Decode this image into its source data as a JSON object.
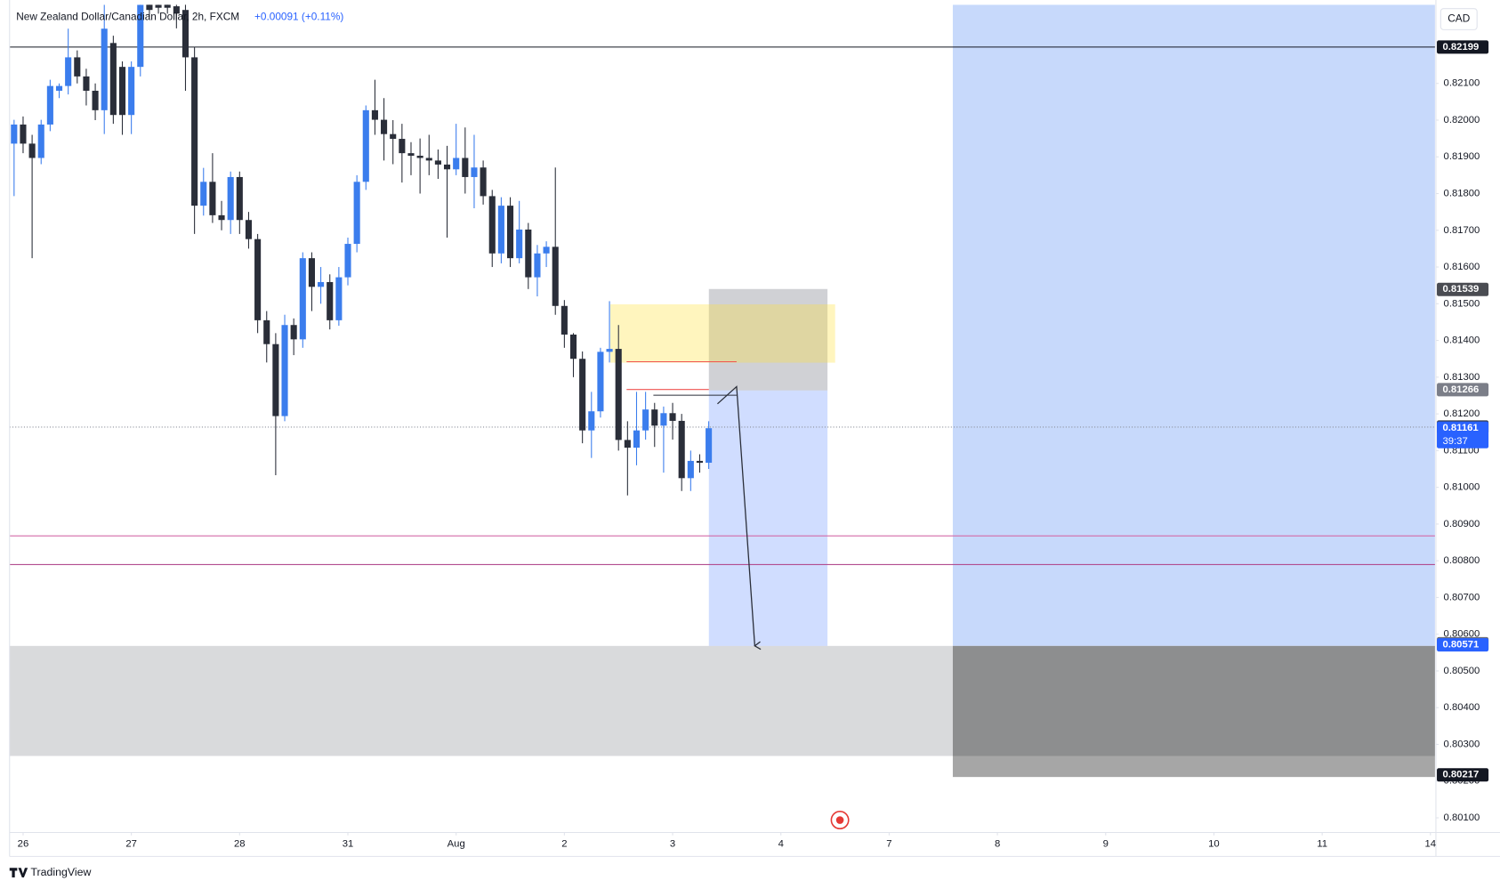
{
  "chart_data": {
    "type": "candlestick",
    "title": "New Zealand Dollar/Canadian Dollar, 2h, FXCM",
    "change": "+0.00091 (+0.11%)",
    "currency": "CAD",
    "watermark": "TradingView",
    "up_color": "#3b7ded",
    "down_color": "#2a2e39",
    "grid": false,
    "xlim": [
      0,
      158
    ],
    "xticks": [
      {
        "value": 1.5,
        "label": "26"
      },
      {
        "value": 13.5,
        "label": "27"
      },
      {
        "value": 25.5,
        "label": "28"
      },
      {
        "value": 37.5,
        "label": "31"
      },
      {
        "value": 49.5,
        "label": "Aug"
      },
      {
        "value": 61.5,
        "label": "2"
      },
      {
        "value": 73.5,
        "label": "3"
      },
      {
        "value": 85.5,
        "label": "4"
      },
      {
        "value": 97.5,
        "label": "7"
      },
      {
        "value": 109.5,
        "label": "8"
      },
      {
        "value": 121.5,
        "label": "9"
      },
      {
        "value": 133.5,
        "label": "10"
      },
      {
        "value": 145.5,
        "label": "11"
      },
      {
        "value": 157.5,
        "label": "14"
      }
    ],
    "ylim": [
      0.8006,
      0.82314
    ],
    "yticks": [
      {
        "value": 0.801,
        "label": "0.80100"
      },
      {
        "value": 0.802,
        "label": "0.80200"
      },
      {
        "value": 0.803,
        "label": "0.80300"
      },
      {
        "value": 0.804,
        "label": "0.80400"
      },
      {
        "value": 0.805,
        "label": "0.80500"
      },
      {
        "value": 0.806,
        "label": "0.80600"
      },
      {
        "value": 0.807,
        "label": "0.80700"
      },
      {
        "value": 0.808,
        "label": "0.80800"
      },
      {
        "value": 0.809,
        "label": "0.80900"
      },
      {
        "value": 0.81,
        "label": "0.81000"
      },
      {
        "value": 0.811,
        "label": "0.81100"
      },
      {
        "value": 0.812,
        "label": "0.81200"
      },
      {
        "value": 0.813,
        "label": "0.81300"
      },
      {
        "value": 0.814,
        "label": "0.81400"
      },
      {
        "value": 0.815,
        "label": "0.81500"
      },
      {
        "value": 0.816,
        "label": "0.81600"
      },
      {
        "value": 0.817,
        "label": "0.81700"
      },
      {
        "value": 0.818,
        "label": "0.81800"
      },
      {
        "value": 0.819,
        "label": "0.81900"
      },
      {
        "value": 0.82,
        "label": "0.82000"
      },
      {
        "value": 0.821,
        "label": "0.82100"
      }
    ],
    "open": [
      0.81936,
      0.81988,
      0.81936,
      0.81897,
      0.81988,
      0.8208,
      0.82093,
      0.82171,
      0.82119,
      0.8208,
      0.82027,
      0.8221,
      0.82145,
      0.82014,
      0.82145,
      0.8233,
      0.82314,
      0.8232,
      0.8231,
      0.823,
      0.82171,
      0.81767,
      0.81832,
      0.81741,
      0.81728,
      0.81845,
      0.81728,
      0.81676,
      0.81455,
      0.8139,
      0.81194,
      0.81442,
      0.81403,
      0.81624,
      0.81546,
      0.81559,
      0.81455,
      0.81572,
      0.81663,
      0.81832,
      0.82027,
      0.82001,
      0.81962,
      0.81949,
      0.8191,
      0.81903,
      0.81897,
      0.8189,
      0.81879,
      0.81866,
      0.81897,
      0.81845,
      0.81871,
      0.81793,
      0.81637,
      0.81767,
      0.81624,
      0.81702,
      0.81572,
      0.81637,
      0.81655,
      0.81494,
      0.81416,
      0.8135,
      0.81155,
      0.81207,
      0.81369,
      0.81377,
      0.81129,
      0.81108,
      0.81155,
      0.81212,
      0.81168,
      0.81202,
      0.81181,
      0.81025,
      0.81072,
      0.81067
    ],
    "high": [
      0.82001,
      0.8201,
      0.8196,
      0.82001,
      0.8211,
      0.821,
      0.82249,
      0.8219,
      0.8214,
      0.821,
      0.82314,
      0.8223,
      0.8216,
      0.8216,
      0.8232,
      0.8234,
      0.8233,
      0.8233,
      0.8233,
      0.8233,
      0.822,
      0.8187,
      0.8191,
      0.8178,
      0.8186,
      0.8186,
      0.8175,
      0.8169,
      0.8148,
      0.8142,
      0.8147,
      0.8146,
      0.8164,
      0.8164,
      0.816,
      0.8158,
      0.816,
      0.8168,
      0.8185,
      0.8204,
      0.8211,
      0.8206,
      0.82,
      0.8199,
      0.8194,
      0.8195,
      0.8196,
      0.8192,
      0.8193,
      0.8199,
      0.8198,
      0.8196,
      0.8189,
      0.8181,
      0.8179,
      0.8179,
      0.8178,
      0.8172,
      0.8166,
      0.8167,
      0.81871,
      0.8151,
      0.8142,
      0.8137,
      0.8126,
      0.8138,
      0.81507,
      0.81442,
      0.8118,
      0.8126,
      0.8126,
      0.8123,
      0.8122,
      0.8123,
      0.812,
      0.811,
      0.8109,
      0.8118
    ],
    "low": [
      0.81793,
      0.8191,
      0.81624,
      0.8188,
      0.8197,
      0.8206,
      0.8207,
      0.821,
      0.8204,
      0.82,
      0.81962,
      0.8199,
      0.8196,
      0.81962,
      0.82119,
      0.8228,
      0.8229,
      0.8229,
      0.8225,
      0.8208,
      0.8169,
      0.8174,
      0.8172,
      0.817,
      0.8169,
      0.8169,
      0.8165,
      0.8142,
      0.8134,
      0.81033,
      0.8118,
      0.8136,
      0.8138,
      0.8148,
      0.815,
      0.8143,
      0.8144,
      0.8155,
      0.8164,
      0.8181,
      0.8196,
      0.8189,
      0.8188,
      0.8183,
      0.8185,
      0.818,
      0.8185,
      0.8184,
      0.8168,
      0.8185,
      0.818,
      0.8176,
      0.8177,
      0.816,
      0.8161,
      0.816,
      0.8161,
      0.8154,
      0.8152,
      0.816,
      0.8147,
      0.8138,
      0.813,
      0.8112,
      0.8108,
      0.8119,
      0.8134,
      0.811,
      0.80978,
      0.8106,
      0.8113,
      0.8111,
      0.8104,
      0.8113,
      0.8099,
      0.8099,
      0.8104,
      0.8105
    ],
    "close": [
      0.81988,
      0.81936,
      0.81897,
      0.81988,
      0.82093,
      0.82093,
      0.82171,
      0.82119,
      0.8208,
      0.82027,
      0.82249,
      0.82014,
      0.82014,
      0.82145,
      0.82314,
      0.823,
      0.82306,
      0.82306,
      0.8229,
      0.82171,
      0.81767,
      0.81832,
      0.81741,
      0.81728,
      0.81845,
      0.81728,
      0.81676,
      0.81455,
      0.8139,
      0.81194,
      0.81442,
      0.81403,
      0.81624,
      0.81546,
      0.81559,
      0.81455,
      0.81572,
      0.81663,
      0.81832,
      0.82027,
      0.82001,
      0.81962,
      0.81949,
      0.8191,
      0.81903,
      0.81897,
      0.8189,
      0.81879,
      0.81866,
      0.81897,
      0.81845,
      0.81871,
      0.81793,
      0.81637,
      0.81767,
      0.81624,
      0.81702,
      0.81572,
      0.81637,
      0.81655,
      0.81494,
      0.81416,
      0.8135,
      0.81155,
      0.81207,
      0.81369,
      0.81377,
      0.81129,
      0.81108,
      0.81155,
      0.81212,
      0.81168,
      0.81202,
      0.81181,
      0.81025,
      0.81072,
      0.81067,
      0.81161
    ],
    "price_labels": [
      {
        "value": 0.82199,
        "color": "#131722",
        "line": "solid"
      },
      {
        "value": 0.81539,
        "color": "#4a4c52"
      },
      {
        "value": 0.81266,
        "color": "#7b7e88"
      },
      {
        "value": 0.81164,
        "color": "#363a45",
        "line": "dotted"
      },
      {
        "value": 0.81161,
        "color": "#2962ff",
        "countdown": "39:37"
      },
      {
        "value": 0.80574,
        "color": "#6f7178"
      },
      {
        "value": 0.80571,
        "color": "#2962ff"
      },
      {
        "value": 0.80217,
        "color": "#131722"
      }
    ]
  }
}
